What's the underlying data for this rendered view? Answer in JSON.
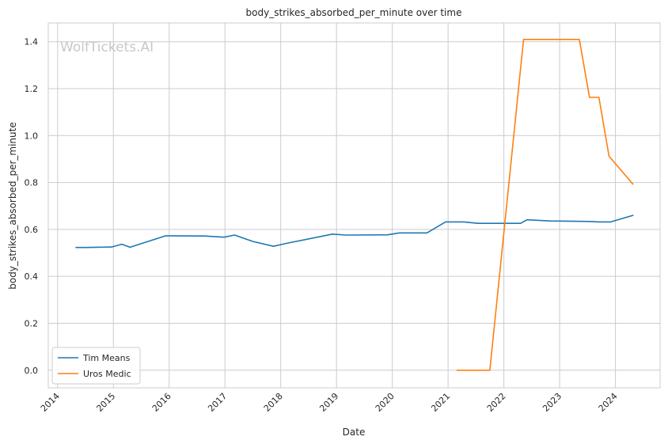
{
  "chart_data": {
    "type": "line",
    "title": "body_strikes_absorbed_per_minute over time",
    "xlabel": "Date",
    "ylabel": "body_strikes_absorbed_per_minute",
    "watermark": "WolfTickets.AI",
    "x_ticks": [
      "2014",
      "2015",
      "2016",
      "2017",
      "2018",
      "2019",
      "2020",
      "2021",
      "2022",
      "2023",
      "2024"
    ],
    "y_ticks": [
      "0.0",
      "0.2",
      "0.4",
      "0.6",
      "0.8",
      "1.0",
      "1.2",
      "1.4"
    ],
    "xlim": [
      "2013-11-01",
      "2024-10-20"
    ],
    "ylim": [
      -0.075,
      1.48
    ],
    "grid": true,
    "legend_position": "lower-left",
    "series": [
      {
        "name": "Tim Means",
        "color": "#1f77b4",
        "points": [
          [
            "2014-05-01",
            0.523
          ],
          [
            "2014-07-15",
            0.523
          ],
          [
            "2014-12-20",
            0.525
          ],
          [
            "2015-02-25",
            0.537
          ],
          [
            "2015-04-20",
            0.524
          ],
          [
            "2015-12-10",
            0.573
          ],
          [
            "2016-08-20",
            0.572
          ],
          [
            "2016-12-25",
            0.567
          ],
          [
            "2017-03-05",
            0.576
          ],
          [
            "2017-07-01",
            0.549
          ],
          [
            "2017-11-15",
            0.528
          ],
          [
            "2018-02-10",
            0.541
          ],
          [
            "2018-12-05",
            0.58
          ],
          [
            "2019-03-05",
            0.576
          ],
          [
            "2019-12-01",
            0.577
          ],
          [
            "2020-02-15",
            0.585
          ],
          [
            "2020-08-15",
            0.585
          ],
          [
            "2020-12-15",
            0.632
          ],
          [
            "2021-04-15",
            0.632
          ],
          [
            "2021-07-15",
            0.626
          ],
          [
            "2022-04-20",
            0.626
          ],
          [
            "2022-06-01",
            0.641
          ],
          [
            "2022-11-01",
            0.636
          ],
          [
            "2023-07-15",
            0.634
          ],
          [
            "2023-09-15",
            0.632
          ],
          [
            "2023-12-01",
            0.632
          ],
          [
            "2024-04-25",
            0.66
          ]
        ]
      },
      {
        "name": "Uros Medic",
        "color": "#ff7f0e",
        "points": [
          [
            "2021-03-01",
            0.0
          ],
          [
            "2021-10-01",
            0.0
          ],
          [
            "2022-05-10",
            1.41
          ],
          [
            "2023-05-10",
            1.41
          ],
          [
            "2023-07-15",
            1.163
          ],
          [
            "2023-09-15",
            1.163
          ],
          [
            "2023-11-20",
            0.912
          ],
          [
            "2024-04-25",
            0.793
          ]
        ]
      }
    ]
  }
}
